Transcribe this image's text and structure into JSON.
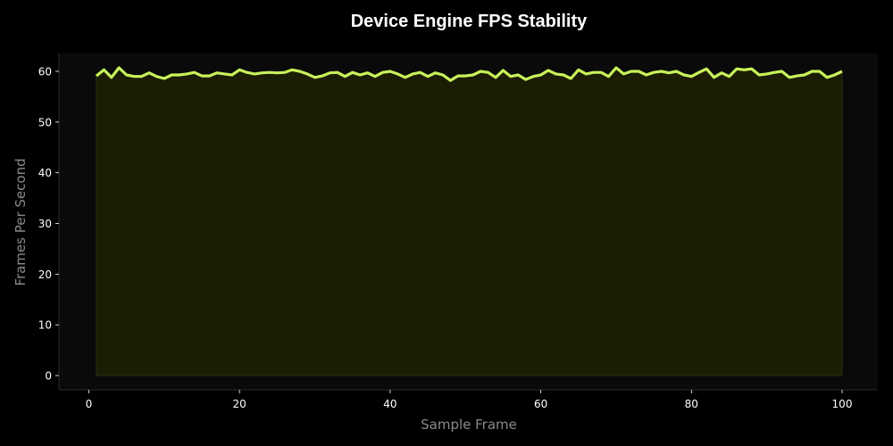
{
  "chart_data": {
    "type": "area",
    "title": "Device Engine FPS Stability",
    "xlabel": "Sample Frame",
    "ylabel": "Frames Per Second",
    "xlim": [
      -4,
      105
    ],
    "ylim": [
      -3,
      63
    ],
    "x_ticks": [
      0,
      20,
      40,
      60,
      80,
      100
    ],
    "y_ticks": [
      0,
      10,
      20,
      30,
      40,
      50,
      60
    ],
    "grid": false,
    "legend": null,
    "line_color": "#c8f25a",
    "fill_color": "#1b1d05",
    "series": [
      {
        "name": "FPS",
        "x": [
          1,
          2,
          3,
          4,
          5,
          6,
          7,
          8,
          9,
          10,
          11,
          12,
          13,
          14,
          15,
          16,
          17,
          18,
          19,
          20,
          21,
          22,
          23,
          24,
          25,
          26,
          27,
          28,
          29,
          30,
          31,
          32,
          33,
          34,
          35,
          36,
          37,
          38,
          39,
          40,
          41,
          42,
          43,
          44,
          45,
          46,
          47,
          48,
          49,
          50,
          51,
          52,
          53,
          54,
          55,
          56,
          57,
          58,
          59,
          60,
          61,
          62,
          63,
          64,
          65,
          66,
          67,
          68,
          69,
          70,
          71,
          72,
          73,
          74,
          75,
          76,
          77,
          78,
          79,
          80,
          81,
          82,
          83,
          84,
          85,
          86,
          87,
          88,
          89,
          90,
          91,
          92,
          93,
          94,
          95,
          96,
          97,
          98,
          99,
          100
        ],
        "values": [
          59.1,
          60.3,
          58.8,
          60.7,
          59.3,
          59.0,
          59.0,
          59.7,
          59.0,
          58.6,
          59.3,
          59.3,
          59.5,
          59.8,
          59.1,
          59.1,
          59.7,
          59.5,
          59.3,
          60.3,
          59.8,
          59.5,
          59.7,
          59.8,
          59.7,
          59.8,
          60.3,
          60.0,
          59.5,
          58.8,
          59.1,
          59.7,
          59.8,
          59.0,
          59.8,
          59.3,
          59.7,
          59.0,
          59.8,
          60.0,
          59.5,
          58.8,
          59.5,
          59.8,
          59.0,
          59.7,
          59.3,
          58.2,
          59.1,
          59.1,
          59.3,
          60.0,
          59.8,
          58.8,
          60.2,
          59.0,
          59.3,
          58.4,
          59.0,
          59.3,
          60.2,
          59.5,
          59.3,
          58.6,
          60.3,
          59.5,
          59.8,
          59.8,
          59.0,
          60.7,
          59.5,
          60.0,
          60.0,
          59.3,
          59.8,
          60.0,
          59.7,
          60.0,
          59.3,
          59.0,
          59.8,
          60.5,
          58.8,
          59.7,
          59.0,
          60.5,
          60.3,
          60.5,
          59.3,
          59.5,
          59.8,
          60.0,
          58.8,
          59.1,
          59.3,
          60.0,
          60.0,
          58.8,
          59.3,
          60.0
        ]
      }
    ]
  }
}
